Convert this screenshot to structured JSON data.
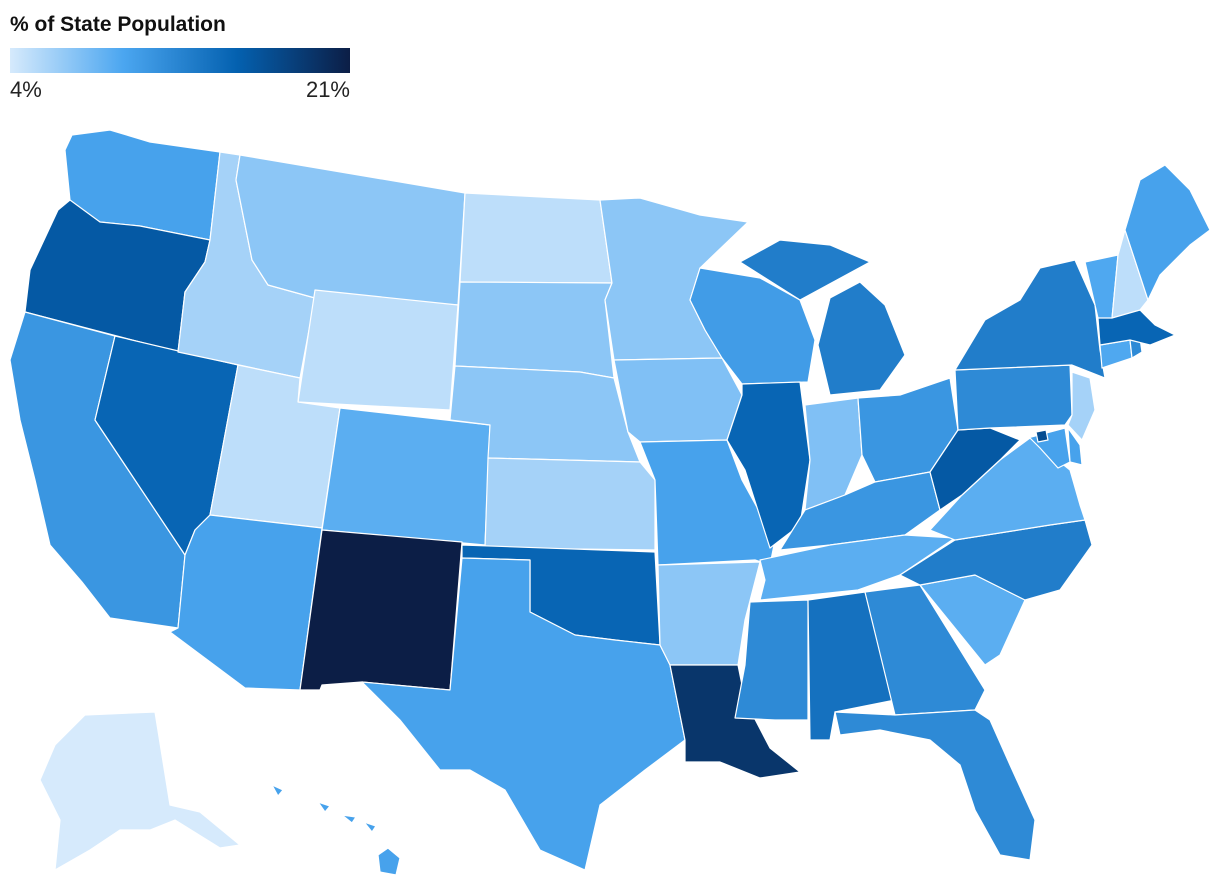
{
  "legend": {
    "title": "% of State Population",
    "min_label": "4%",
    "max_label": "21%",
    "min_value": 4,
    "max_value": 21,
    "gradient": [
      "#d6eafc",
      "#4ba6f0",
      "#0461b0",
      "#0c1e46"
    ]
  },
  "states": [
    {
      "id": "WA",
      "value": 10
    },
    {
      "id": "OR",
      "value": 16
    },
    {
      "id": "CA",
      "value": 11
    },
    {
      "id": "NV",
      "value": 15
    },
    {
      "id": "ID",
      "value": 6
    },
    {
      "id": "MT",
      "value": 7
    },
    {
      "id": "WY",
      "value": 5
    },
    {
      "id": "UT",
      "value": 5
    },
    {
      "id": "AZ",
      "value": 10
    },
    {
      "id": "CO",
      "value": 9
    },
    {
      "id": "NM",
      "value": 21
    },
    {
      "id": "ND",
      "value": 5
    },
    {
      "id": "SD",
      "value": 7
    },
    {
      "id": "NE",
      "value": 7
    },
    {
      "id": "KS",
      "value": 6
    },
    {
      "id": "OK",
      "value": 15
    },
    {
      "id": "TX",
      "value": 10
    },
    {
      "id": "MN",
      "value": 7
    },
    {
      "id": "IA",
      "value": 7.5
    },
    {
      "id": "MO",
      "value": 10
    },
    {
      "id": "AR",
      "value": 7
    },
    {
      "id": "LA",
      "value": 19
    },
    {
      "id": "WI",
      "value": 10.5
    },
    {
      "id": "IL",
      "value": 15
    },
    {
      "id": "MI",
      "value": 13
    },
    {
      "id": "IN",
      "value": 7.5
    },
    {
      "id": "OH",
      "value": 11
    },
    {
      "id": "KY",
      "value": 11
    },
    {
      "id": "TN",
      "value": 9
    },
    {
      "id": "MS",
      "value": 12
    },
    {
      "id": "AL",
      "value": 14
    },
    {
      "id": "GA",
      "value": 12
    },
    {
      "id": "FL",
      "value": 12
    },
    {
      "id": "SC",
      "value": 9
    },
    {
      "id": "NC",
      "value": 13
    },
    {
      "id": "VA",
      "value": 9
    },
    {
      "id": "WV",
      "value": 16
    },
    {
      "id": "PA",
      "value": 12
    },
    {
      "id": "NY",
      "value": 13
    },
    {
      "id": "ME",
      "value": 10
    },
    {
      "id": "NH",
      "value": 5
    },
    {
      "id": "VT",
      "value": 9.5
    },
    {
      "id": "MA",
      "value": 15
    },
    {
      "id": "CT",
      "value": 9.5
    },
    {
      "id": "RI",
      "value": 12
    },
    {
      "id": "NJ",
      "value": 6
    },
    {
      "id": "DE",
      "value": 10
    },
    {
      "id": "MD",
      "value": 10
    },
    {
      "id": "DC",
      "value": 17
    },
    {
      "id": "AK",
      "value": 4
    },
    {
      "id": "HI",
      "value": 10
    }
  ]
}
